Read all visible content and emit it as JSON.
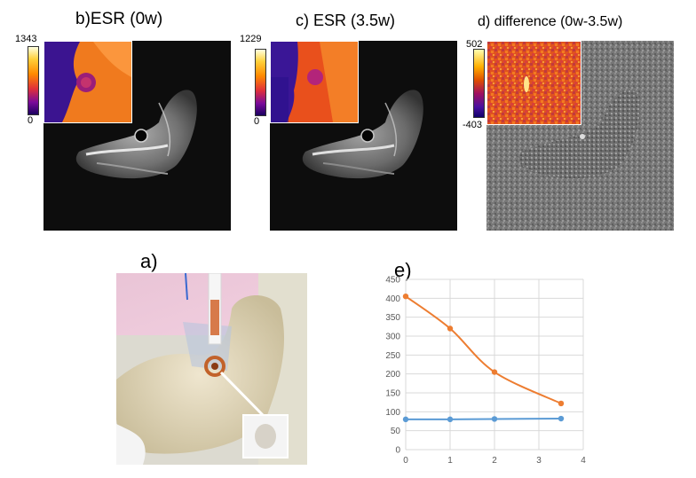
{
  "panel_b": {
    "label": "b)ESR (0w)",
    "colorbar_max": "1343",
    "colorbar_min": "0"
  },
  "panel_c": {
    "label": "c) ESR (3.5w)",
    "colorbar_max": "1229",
    "colorbar_min": "0"
  },
  "panel_d": {
    "label": "d) difference (0w-3.5w)",
    "colorbar_max": "502",
    "colorbar_min": "-403"
  },
  "panel_a": {
    "label": "a)"
  },
  "panel_e": {
    "label": "e)"
  },
  "chart_data": {
    "type": "line",
    "title": "",
    "xlabel": "",
    "ylabel": "",
    "xlim": [
      0,
      4
    ],
    "ylim": [
      0,
      450
    ],
    "xticks": [
      0,
      1,
      2,
      3,
      4
    ],
    "yticks": [
      0,
      50,
      100,
      150,
      200,
      250,
      300,
      350,
      400,
      450
    ],
    "grid": true,
    "series": [
      {
        "name": "orange",
        "color": "#ed7d31",
        "x": [
          0,
          1,
          2,
          3.5
        ],
        "values": [
          405,
          320,
          205,
          122
        ],
        "smooth": true
      },
      {
        "name": "blue",
        "color": "#5b9bd5",
        "x": [
          0,
          1,
          2,
          3.5
        ],
        "values": [
          80,
          80,
          81,
          82
        ],
        "smooth": true
      }
    ]
  }
}
